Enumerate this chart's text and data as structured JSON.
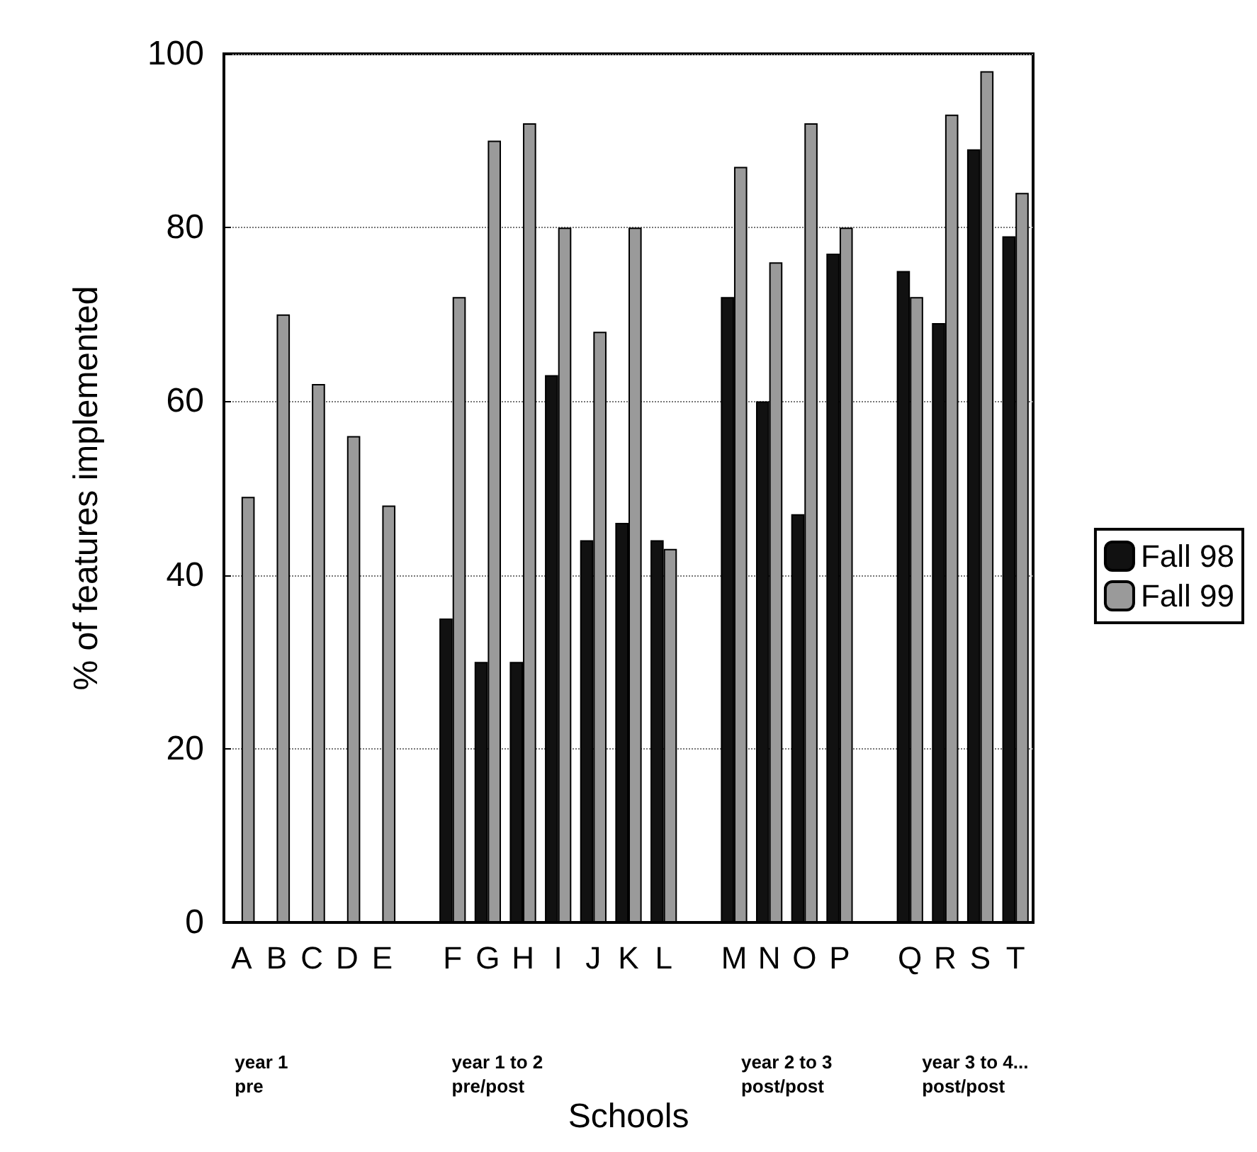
{
  "chart_data": {
    "type": "bar",
    "xlabel": "Schools",
    "ylabel": "% of features implemented",
    "categories": [
      "A",
      "B",
      "C",
      "D",
      "E",
      null,
      "F",
      "G",
      "H",
      "I",
      "J",
      "K",
      "L",
      null,
      "M",
      "N",
      "O",
      "P",
      null,
      "Q",
      "R",
      "S",
      "T"
    ],
    "series": [
      {
        "name": "Fall 98",
        "color": "#111111",
        "values": [
          null,
          null,
          null,
          null,
          null,
          null,
          35,
          30,
          30,
          63,
          44,
          46,
          44,
          null,
          72,
          60,
          47,
          77,
          null,
          75,
          69,
          89,
          79
        ]
      },
      {
        "name": "Fall 99",
        "color": "#9a9a9a",
        "values": [
          49,
          70,
          62,
          56,
          48,
          null,
          72,
          90,
          92,
          80,
          68,
          80,
          43,
          null,
          87,
          76,
          92,
          80,
          null,
          72,
          93,
          98,
          84
        ]
      }
    ],
    "ylim": [
      0,
      100
    ],
    "yticks": [
      0,
      20,
      40,
      60,
      80,
      100
    ],
    "grid": "y",
    "legend": "right",
    "annotations": [
      "year 1\npre",
      "year 1 to 2\npre/post",
      "year 2 to 3\npost/post",
      "year 3 to 4...\npost/post"
    ]
  }
}
